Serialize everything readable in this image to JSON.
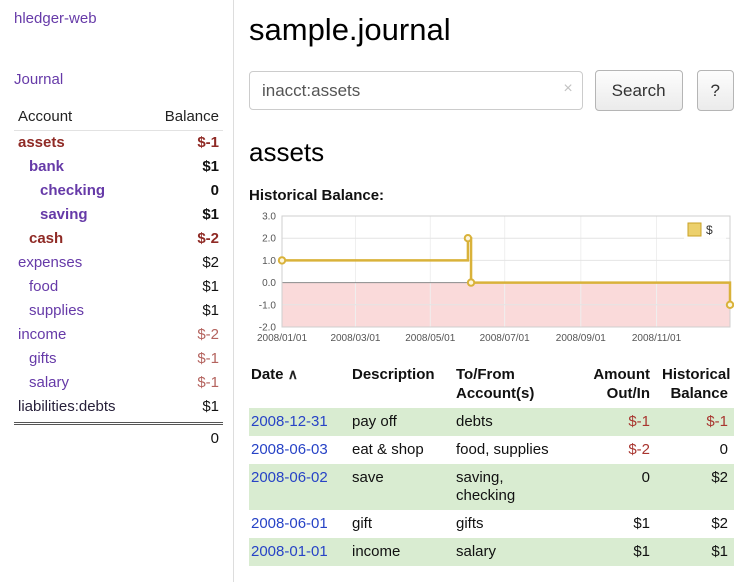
{
  "colors": {
    "purple": "#663aa8",
    "link_blue": "#2743c6",
    "neg_red": "#8f2a25",
    "neg_light": "#b4635e",
    "row_green": "#d9ecd1",
    "gold": "#d9b23a",
    "gold_fill": "#ecd06c",
    "zero_band": "#fadada"
  },
  "sidebar": {
    "app_title": "hledger-web",
    "journal_link": "Journal",
    "accounts_table": {
      "headers": {
        "account": "Account",
        "balance": "Balance"
      },
      "rows": [
        {
          "name": "assets",
          "balance": "$-1",
          "indent": 0,
          "bold": true,
          "name_color": "red",
          "balance_color": "red"
        },
        {
          "name": "bank",
          "balance": "$1",
          "indent": 1,
          "bold": true,
          "name_color": "purple",
          "balance_color": "black"
        },
        {
          "name": "checking",
          "balance": "0",
          "indent": 2,
          "bold": true,
          "name_color": "purple",
          "balance_color": "black"
        },
        {
          "name": "saving",
          "balance": "$1",
          "indent": 2,
          "bold": true,
          "name_color": "purple",
          "balance_color": "black"
        },
        {
          "name": "cash",
          "balance": "$-2",
          "indent": 1,
          "bold": true,
          "name_color": "red",
          "balance_color": "red"
        },
        {
          "name": "expenses",
          "balance": "$2",
          "indent": 0,
          "bold": false,
          "name_color": "purple",
          "balance_color": "black"
        },
        {
          "name": "food",
          "balance": "$1",
          "indent": 1,
          "bold": false,
          "name_color": "purple",
          "balance_color": "black"
        },
        {
          "name": "supplies",
          "balance": "$1",
          "indent": 1,
          "bold": false,
          "name_color": "purple",
          "balance_color": "black"
        },
        {
          "name": "income",
          "balance": "$-2",
          "indent": 0,
          "bold": false,
          "name_color": "purple",
          "balance_color": "lightred"
        },
        {
          "name": "gifts",
          "balance": "$-1",
          "indent": 1,
          "bold": false,
          "name_color": "purple",
          "balance_color": "lightred"
        },
        {
          "name": "salary",
          "balance": "$-1",
          "indent": 1,
          "bold": false,
          "name_color": "purple",
          "balance_color": "lightred"
        },
        {
          "name": "liabilities:debts",
          "balance": "$1",
          "indent": 0,
          "bold": false,
          "name_color": "dark",
          "balance_color": "black"
        }
      ],
      "total": "0"
    }
  },
  "main": {
    "title": "sample.journal",
    "search": {
      "value": "inacct:assets",
      "clear_icon": "×",
      "button_label": "Search",
      "help_label": "?"
    },
    "account_heading": "assets",
    "chart_title": "Historical Balance:"
  },
  "chart_data": {
    "type": "line",
    "step": true,
    "title": "Historical Balance:",
    "legend": {
      "label": "$",
      "position": "top-right"
    },
    "ylim": [
      -2,
      3
    ],
    "y_ticks": [
      3.0,
      2.0,
      1.0,
      0.0,
      -1.0,
      -2.0
    ],
    "x_ticks": [
      {
        "label": "2008/01/01",
        "x": 0.0
      },
      {
        "label": "2008/03/01",
        "x": 0.164
      },
      {
        "label": "2008/05/01",
        "x": 0.331
      },
      {
        "label": "2008/07/01",
        "x": 0.497
      },
      {
        "label": "2008/09/01",
        "x": 0.667
      },
      {
        "label": "2008/11/01",
        "x": 0.836
      }
    ],
    "negative_band": true,
    "series": [
      {
        "name": "$",
        "points": [
          {
            "date": "2008-01-01",
            "x": 0.0,
            "y": 1
          },
          {
            "date": "2008-06-01",
            "x": 0.415,
            "y": 2
          },
          {
            "date": "2008-06-03",
            "x": 0.422,
            "y": 0
          },
          {
            "date": "2008-12-31",
            "x": 1.0,
            "y": -1
          }
        ]
      }
    ]
  },
  "register": {
    "headers": {
      "date": "Date",
      "sort_icon": "∧",
      "description": "Description",
      "tofrom": "To/From\nAccount(s)",
      "amount": "Amount\nOut/In",
      "balance": "Historical\nBalance"
    },
    "rows": [
      {
        "date": "2008-12-31",
        "description": "pay off",
        "accounts": "debts",
        "amount": "$-1",
        "amount_neg": true,
        "balance": "$-1",
        "balance_neg": true,
        "highlight": true
      },
      {
        "date": "2008-06-03",
        "description": "eat & shop",
        "accounts": "food, supplies",
        "amount": "$-2",
        "amount_neg": true,
        "balance": "0",
        "balance_neg": false,
        "highlight": false
      },
      {
        "date": "2008-06-02",
        "description": "save",
        "accounts": "saving,\nchecking",
        "amount": "0",
        "amount_neg": false,
        "balance": "$2",
        "balance_neg": false,
        "highlight": true
      },
      {
        "date": "2008-06-01",
        "description": "gift",
        "accounts": "gifts",
        "amount": "$1",
        "amount_neg": false,
        "balance": "$2",
        "balance_neg": false,
        "highlight": false
      },
      {
        "date": "2008-01-01",
        "description": "income",
        "accounts": "salary",
        "amount": "$1",
        "amount_neg": false,
        "balance": "$1",
        "balance_neg": false,
        "highlight": true
      }
    ]
  }
}
